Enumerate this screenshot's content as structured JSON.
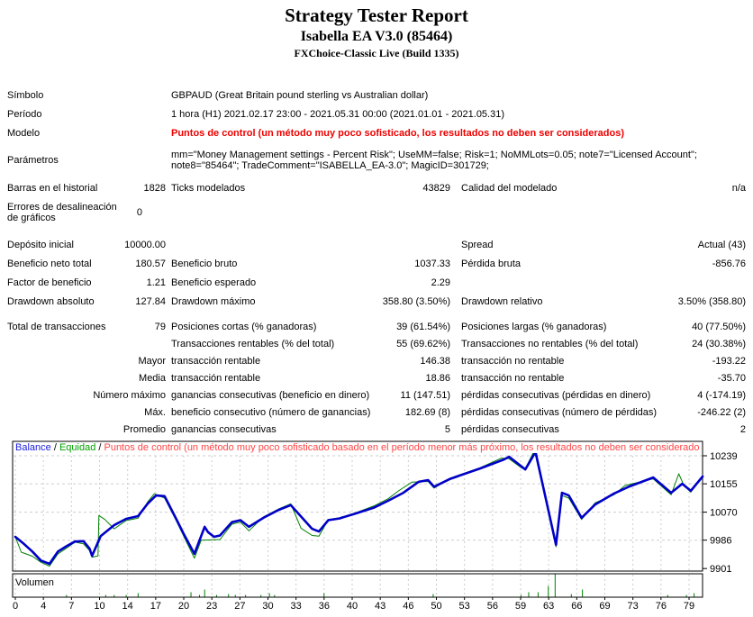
{
  "header": {
    "title": "Strategy Tester Report",
    "subtitle": "Isabella EA V3.0 (85464)",
    "broker": "FXChoice-Classic Live (Build 1335)"
  },
  "colors": {
    "balance_line": "#0000c8",
    "equity_line": "#008000",
    "legend_balance": "#2020dd",
    "legend_equity": "#00a000",
    "legend_warning": "#ff4545",
    "model_warning": "#ee0000",
    "grid": "#cdcdcd",
    "volume": "#008000",
    "axis": "#000000"
  },
  "table": {
    "rows": [
      {
        "l1": "Símbolo",
        "wide": "GBPAUD (Great Britain pound sterling vs Australian dollar)"
      },
      {
        "l1": "Período",
        "wide": "1 hora (H1) 2021.02.17 23:00 - 2021.05.31 00:00 (2021.01.01 - 2021.05.31)"
      },
      {
        "l1": "Modelo",
        "wide": "Puntos de control (un método muy poco sofisticado, los resultados no deben ser considerados)",
        "red": true
      },
      {
        "l1": "Parámetros",
        "wide": "mm=\"Money Management settings - Percent Risk\"; UseMM=false; Risk=1; NoMMLots=0.05; note7=\"Licensed Account\"; note8=\"85464\"; TradeComment=\"ISABELLA_EA-3.0\"; MagicID=301729;",
        "h": 40
      },
      {
        "l1": "Barras en el historial",
        "v1": "1828",
        "l2": "Ticks modelados",
        "v2": "43829",
        "l3": "Calidad del modelado",
        "v3": "n/a"
      },
      {
        "l1": "Errores de desalineación de gráficos",
        "v1": "0",
        "h": 34,
        "vpad": 26
      },
      {
        "l1": "Depósito inicial",
        "v1": "10000.00",
        "l3": "Spread",
        "v3": "Actual (43)",
        "gap": 8
      },
      {
        "l1": "Beneficio neto total",
        "v1": "180.57",
        "l2": "Beneficio bruto",
        "v2": "1037.33",
        "l3": "Pérdida bruta",
        "v3": "-856.76"
      },
      {
        "l1": "Factor de beneficio",
        "v1": "1.21",
        "l2": "Beneficio esperado",
        "v2": "2.29"
      },
      {
        "l1": "Drawdown absoluto",
        "v1": "127.84",
        "l2": "Drawdown máximo",
        "v2": "358.80 (3.50%)",
        "l3": "Drawdown relativo",
        "v3": "3.50% (358.80)"
      },
      {
        "l1": "Total de transacciones",
        "v1": "79",
        "l2": "Posiciones cortas (% ganadoras)",
        "v2": "39 (61.54%)",
        "l3": "Posiciones largas (% ganadoras)",
        "v3": "40 (77.50%)",
        "gap": 8,
        "h": 19
      },
      {
        "l2": "Transacciones rentables (% del total)",
        "v2": "55 (69.62%)",
        "l3": "Transacciones no rentables (% del total)",
        "v3": "24 (30.38%)",
        "h": 19
      },
      {
        "v1": "Mayor",
        "l2": "transacción rentable",
        "v2": "146.38",
        "l3": "transacción no rentable",
        "v3": "-193.22",
        "h": 19
      },
      {
        "v1": "Media",
        "l2": "transacción rentable",
        "v2": "18.86",
        "l3": "transacción no rentable",
        "v3": "-35.70",
        "h": 19
      },
      {
        "v1": "Número máximo",
        "l2": "ganancias consecutivas (beneficio en dinero)",
        "v2": "11 (147.51)",
        "l3": "pérdidas consecutivas (pérdidas en dinero)",
        "v3": "4 (-174.19)",
        "h": 19
      },
      {
        "v1": "Máx.",
        "l2": "beneficio consecutivo (número de ganancias)",
        "v2": "182.69 (8)",
        "l3": "pérdidas consecutivas (número de pérdidas)",
        "v3": "-246.22 (2)",
        "h": 19
      },
      {
        "v1": "Promedio",
        "l2": "ganancias consecutivas",
        "v2": "5",
        "l3": "pérdidas consecutivas",
        "v3": "2",
        "h": 19
      }
    ]
  },
  "legend": {
    "balance": "Balance",
    "separator": " / ",
    "equity": "Equidad",
    "warning": "Puntos de control (un método muy poco sofisticado basado en el período menor más próximo, los resultados no deben ser considerados)"
  },
  "chart_data": {
    "type": "line",
    "title": "Balance / Equidad",
    "grid": true,
    "legend_position": "top-left inside plot",
    "ylim": [
      9901,
      10239
    ],
    "xlim": [
      0,
      79
    ],
    "y_ticks": [
      10239,
      10155,
      10070,
      9986,
      9901
    ],
    "x_ticks": [
      0,
      4,
      7,
      10,
      14,
      17,
      20,
      23,
      27,
      30,
      33,
      36,
      40,
      43,
      46,
      50,
      53,
      56,
      59,
      63,
      66,
      69,
      73,
      76,
      79
    ],
    "series": [
      {
        "name": "Equidad",
        "points": [
          [
            0,
            9996
          ],
          [
            0.7,
            9950
          ],
          [
            2,
            9938
          ],
          [
            3,
            9920
          ],
          [
            4,
            9908
          ],
          [
            5,
            9945
          ],
          [
            6,
            9962
          ],
          [
            7,
            9980
          ],
          [
            8,
            9975
          ],
          [
            8.7,
            9955
          ],
          [
            9,
            9935
          ],
          [
            9.7,
            9939
          ],
          [
            9.8,
            10060
          ],
          [
            10.5,
            10048
          ],
          [
            11.6,
            10020
          ],
          [
            13,
            10045
          ],
          [
            14.4,
            10052
          ],
          [
            15.5,
            10100
          ],
          [
            16.3,
            10125
          ],
          [
            17.5,
            10112
          ],
          [
            18.8,
            10048
          ],
          [
            19.8,
            9995
          ],
          [
            21,
            9932
          ],
          [
            21.8,
            9986
          ],
          [
            24,
            9988
          ],
          [
            25.4,
            10034
          ],
          [
            26.4,
            10040
          ],
          [
            27.4,
            10014
          ],
          [
            29.1,
            10056
          ],
          [
            30.9,
            10080
          ],
          [
            32.3,
            10095
          ],
          [
            33.5,
            10022
          ],
          [
            34.8,
            10000
          ],
          [
            35.6,
            9998
          ],
          [
            36.7,
            10048
          ],
          [
            38,
            10053
          ],
          [
            39.9,
            10068
          ],
          [
            42,
            10088
          ],
          [
            43.7,
            10110
          ],
          [
            45,
            10135
          ],
          [
            46.5,
            10160
          ],
          [
            48.4,
            10162
          ],
          [
            49.1,
            10142
          ],
          [
            51,
            10172
          ],
          [
            54.5,
            10203
          ],
          [
            57,
            10232
          ],
          [
            57.9,
            10230
          ],
          [
            59.4,
            10202
          ],
          [
            59.8,
            10200
          ],
          [
            61,
            10262
          ],
          [
            63.4,
            9966
          ],
          [
            64.1,
            10120
          ],
          [
            64.9,
            10112
          ],
          [
            66.4,
            10048
          ],
          [
            68,
            10098
          ],
          [
            70.2,
            10122
          ],
          [
            71.5,
            10150
          ],
          [
            74.8,
            10170
          ],
          [
            76.9,
            10122
          ],
          [
            77.8,
            10185
          ],
          [
            78.4,
            10150
          ],
          [
            79.2,
            10130
          ],
          [
            80.6,
            10177
          ]
        ]
      },
      {
        "name": "Balance",
        "points": [
          [
            0,
            9996
          ],
          [
            1,
            9975
          ],
          [
            2,
            9952
          ],
          [
            3,
            9925
          ],
          [
            4,
            9915
          ],
          [
            5,
            9952
          ],
          [
            6,
            9968
          ],
          [
            7,
            9982
          ],
          [
            8,
            9983
          ],
          [
            8.7,
            9961
          ],
          [
            9,
            9939
          ],
          [
            10,
            9998
          ],
          [
            11.6,
            10031
          ],
          [
            13,
            10050
          ],
          [
            14.4,
            10058
          ],
          [
            15.5,
            10095
          ],
          [
            16.5,
            10120
          ],
          [
            17.5,
            10118
          ],
          [
            18.8,
            10053
          ],
          [
            19.8,
            10002
          ],
          [
            21,
            9945
          ],
          [
            22.2,
            10026
          ],
          [
            22.6,
            10010
          ],
          [
            23.3,
            9996
          ],
          [
            24,
            10000
          ],
          [
            25.4,
            10040
          ],
          [
            26.4,
            10046
          ],
          [
            27.4,
            10026
          ],
          [
            29.1,
            10053
          ],
          [
            30.9,
            10077
          ],
          [
            32.3,
            10091
          ],
          [
            34.8,
            10020
          ],
          [
            35.6,
            10012
          ],
          [
            36.7,
            10046
          ],
          [
            38,
            10051
          ],
          [
            39.9,
            10066
          ],
          [
            42,
            10083
          ],
          [
            43.7,
            10104
          ],
          [
            45.5,
            10128
          ],
          [
            47.3,
            10161
          ],
          [
            48.4,
            10166
          ],
          [
            49.1,
            10146
          ],
          [
            51,
            10170
          ],
          [
            54.5,
            10201
          ],
          [
            57.3,
            10228
          ],
          [
            57.9,
            10236
          ],
          [
            59.4,
            10206
          ],
          [
            59.8,
            10198
          ],
          [
            61,
            10250
          ],
          [
            63.4,
            9972
          ],
          [
            64.1,
            10128
          ],
          [
            64.9,
            10120
          ],
          [
            66.4,
            10053
          ],
          [
            68,
            10093
          ],
          [
            70.2,
            10126
          ],
          [
            72,
            10147
          ],
          [
            74.8,
            10174
          ],
          [
            76.9,
            10128
          ],
          [
            78.2,
            10155
          ],
          [
            79.2,
            10134
          ],
          [
            80.6,
            10177
          ]
        ]
      }
    ],
    "volume": {
      "label": "Volumen",
      "bars": [
        [
          6,
          2
        ],
        [
          10.6,
          2
        ],
        [
          11.6,
          2
        ],
        [
          13,
          2
        ],
        [
          14.4,
          4
        ],
        [
          20.6,
          5
        ],
        [
          21.6,
          2
        ],
        [
          22.2,
          8
        ],
        [
          23.6,
          2
        ],
        [
          25,
          3
        ],
        [
          25.8,
          2
        ],
        [
          27,
          2
        ],
        [
          28.8,
          2
        ],
        [
          29.8,
          4
        ],
        [
          30.4,
          2
        ],
        [
          36.2,
          4
        ],
        [
          49,
          3
        ],
        [
          59.3,
          2
        ],
        [
          60.2,
          5
        ],
        [
          61.3,
          5
        ],
        [
          62.5,
          12
        ],
        [
          63.3,
          26
        ],
        [
          65.2,
          3
        ],
        [
          66.5,
          8
        ],
        [
          76.5,
          2
        ],
        [
          78.7,
          2
        ],
        [
          79.6,
          4
        ]
      ]
    }
  }
}
